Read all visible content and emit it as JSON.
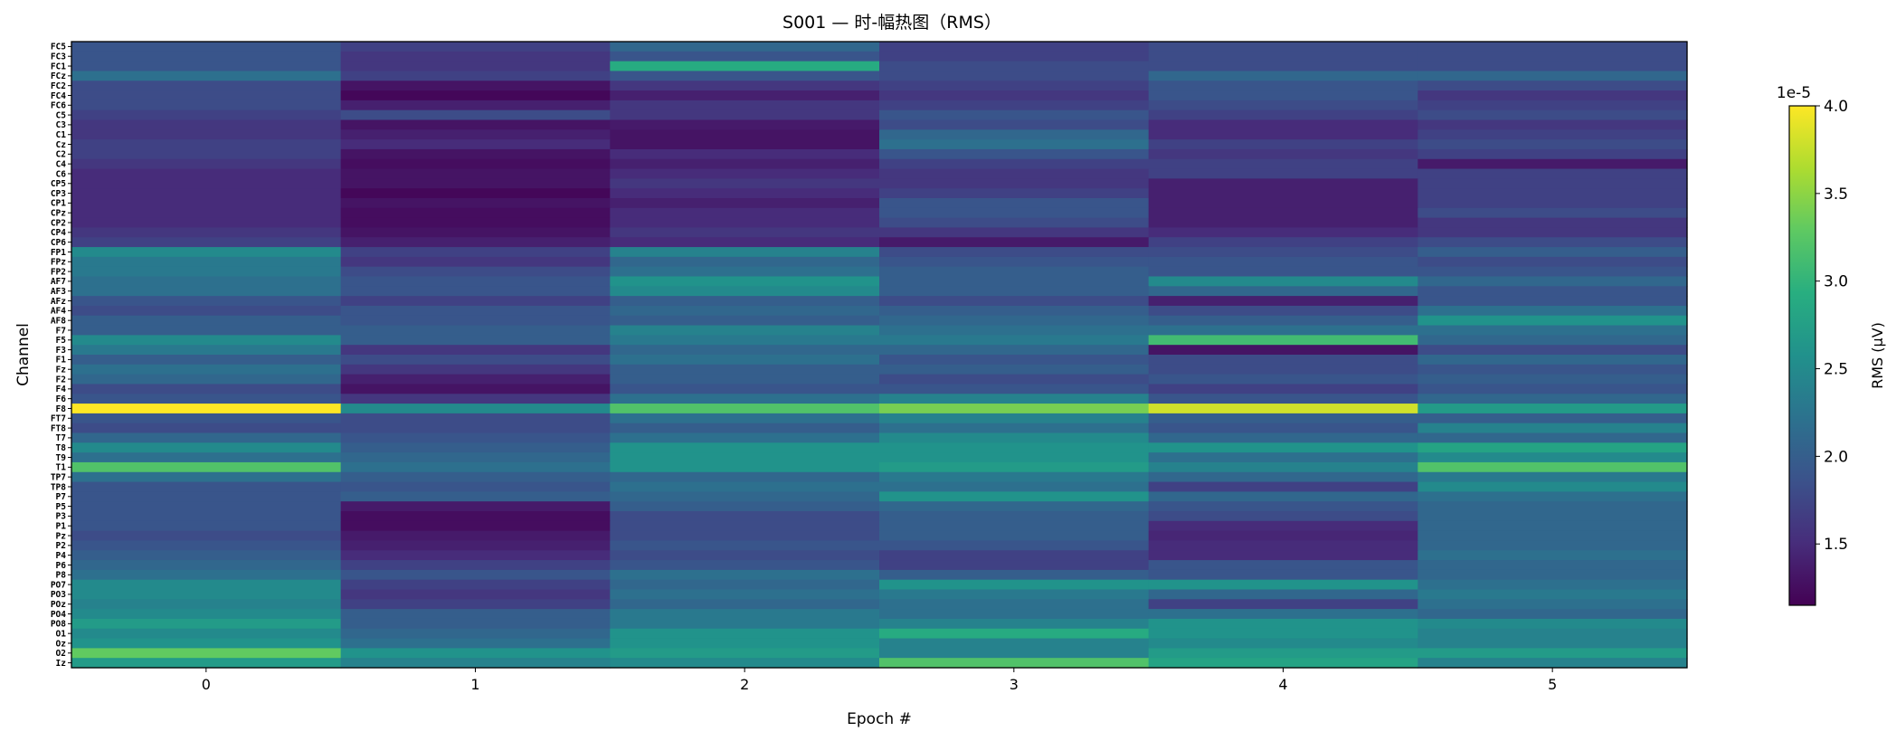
{
  "chart_data": {
    "type": "heatmap",
    "title": "S001 — 时-幅热图（RMS）",
    "xlabel": "Epoch #",
    "ylabel": "Channel",
    "x": [
      "0",
      "1",
      "2",
      "3",
      "4",
      "5"
    ],
    "channels": [
      "FC5",
      "FC3",
      "FC1",
      "FCz",
      "FC2",
      "FC4",
      "FC6",
      "C5",
      "C3",
      "C1",
      "Cz",
      "C2",
      "C4",
      "C6",
      "CP5",
      "CP3",
      "CP1",
      "CPz",
      "CP2",
      "CP4",
      "CP6",
      "FP1",
      "FPz",
      "FP2",
      "AF7",
      "AF3",
      "AFz",
      "AF4",
      "AF8",
      "F7",
      "F5",
      "F3",
      "F1",
      "Fz",
      "F2",
      "F4",
      "F6",
      "F8",
      "FT7",
      "FT8",
      "T7",
      "T8",
      "T9",
      "T1",
      "TP7",
      "TP8",
      "P7",
      "P5",
      "P3",
      "P1",
      "Pz",
      "P2",
      "P4",
      "P6",
      "P8",
      "PO7",
      "PO3",
      "POz",
      "PO4",
      "PO8",
      "O1",
      "Oz",
      "O2",
      "Iz"
    ],
    "colormap": "viridis",
    "colorbar": {
      "label": "RMS (μV)",
      "scale_text": "1e-5",
      "min": 1.15,
      "max": 4.0,
      "ticks": [
        "1.5",
        "2.0",
        "2.5",
        "3.0",
        "3.5",
        "4.0"
      ],
      "tick_values": [
        1.5,
        2.0,
        2.5,
        3.0,
        3.5,
        4.0
      ]
    },
    "values": [
      [
        1.9,
        1.7,
        2.1,
        1.7,
        1.8,
        1.8
      ],
      [
        1.9,
        1.6,
        1.9,
        1.7,
        1.8,
        1.8
      ],
      [
        1.9,
        1.6,
        2.9,
        1.8,
        1.8,
        1.8
      ],
      [
        2.2,
        1.7,
        1.9,
        1.8,
        2.1,
        2.1
      ],
      [
        1.8,
        1.3,
        1.6,
        1.7,
        1.9,
        1.8
      ],
      [
        1.8,
        1.2,
        1.4,
        1.6,
        1.9,
        1.6
      ],
      [
        1.8,
        1.4,
        1.6,
        1.7,
        1.8,
        1.7
      ],
      [
        1.7,
        1.8,
        1.6,
        1.9,
        1.7,
        1.8
      ],
      [
        1.6,
        1.3,
        1.35,
        1.8,
        1.5,
        1.6
      ],
      [
        1.6,
        1.4,
        1.3,
        2.1,
        1.5,
        1.7
      ],
      [
        1.7,
        1.5,
        1.3,
        2.2,
        1.7,
        1.8
      ],
      [
        1.7,
        1.3,
        1.5,
        1.9,
        1.6,
        1.7
      ],
      [
        1.6,
        1.25,
        1.4,
        1.7,
        1.7,
        1.35
      ],
      [
        1.5,
        1.3,
        1.5,
        1.6,
        1.7,
        1.7
      ],
      [
        1.5,
        1.3,
        1.6,
        1.6,
        1.4,
        1.7
      ],
      [
        1.5,
        1.2,
        1.5,
        1.7,
        1.4,
        1.7
      ],
      [
        1.5,
        1.3,
        1.4,
        1.9,
        1.4,
        1.7
      ],
      [
        1.5,
        1.25,
        1.5,
        1.9,
        1.4,
        1.8
      ],
      [
        1.5,
        1.25,
        1.5,
        1.8,
        1.4,
        1.6
      ],
      [
        1.6,
        1.3,
        1.6,
        1.6,
        1.5,
        1.6
      ],
      [
        1.7,
        1.4,
        1.5,
        1.35,
        1.7,
        1.8
      ],
      [
        2.5,
        1.7,
        2.4,
        1.8,
        1.8,
        2.0
      ],
      [
        2.3,
        1.6,
        2.1,
        1.9,
        1.9,
        1.8
      ],
      [
        2.3,
        1.8,
        2.2,
        2.0,
        1.9,
        1.9
      ],
      [
        2.2,
        1.9,
        2.6,
        2.0,
        2.5,
        2.1
      ],
      [
        2.2,
        1.9,
        2.5,
        2.0,
        2.1,
        1.9
      ],
      [
        1.9,
        1.7,
        2.0,
        1.8,
        1.4,
        1.9
      ],
      [
        1.8,
        1.9,
        2.1,
        2.0,
        1.8,
        2.2
      ],
      [
        2.0,
        1.9,
        2.0,
        2.1,
        2.0,
        2.6
      ],
      [
        2.0,
        2.0,
        2.4,
        2.2,
        2.2,
        2.2
      ],
      [
        2.5,
        2.0,
        2.3,
        2.3,
        3.1,
        2.1
      ],
      [
        2.3,
        1.6,
        2.1,
        2.1,
        1.3,
        1.8
      ],
      [
        2.0,
        1.8,
        2.2,
        1.9,
        1.8,
        2.1
      ],
      [
        2.2,
        1.6,
        2.0,
        2.0,
        1.8,
        1.9
      ],
      [
        2.1,
        1.4,
        2.0,
        1.8,
        1.9,
        2.0
      ],
      [
        1.8,
        1.3,
        1.9,
        1.9,
        1.7,
        1.9
      ],
      [
        1.9,
        1.6,
        2.2,
        2.4,
        1.9,
        2.1
      ],
      [
        4.0,
        2.5,
        3.2,
        3.4,
        3.8,
        2.7
      ],
      [
        1.9,
        1.8,
        2.2,
        2.4,
        2.0,
        2.0
      ],
      [
        1.8,
        1.8,
        2.0,
        2.2,
        1.9,
        2.4
      ],
      [
        2.1,
        1.9,
        2.2,
        2.5,
        2.1,
        2.1
      ],
      [
        2.5,
        2.0,
        2.6,
        2.6,
        2.6,
        2.8
      ],
      [
        2.2,
        2.1,
        2.6,
        2.6,
        2.2,
        2.5
      ],
      [
        3.2,
        2.2,
        2.6,
        2.7,
        2.4,
        3.2
      ],
      [
        2.2,
        2.0,
        2.1,
        2.3,
        2.1,
        2.3
      ],
      [
        1.9,
        1.9,
        2.2,
        2.2,
        1.7,
        2.5
      ],
      [
        1.9,
        2.0,
        2.1,
        2.6,
        2.1,
        2.2
      ],
      [
        1.9,
        1.35,
        2.0,
        2.1,
        1.9,
        2.1
      ],
      [
        1.9,
        1.25,
        1.8,
        2.0,
        1.8,
        2.1
      ],
      [
        1.9,
        1.25,
        1.8,
        2.0,
        1.5,
        2.1
      ],
      [
        1.8,
        1.35,
        1.8,
        2.0,
        1.45,
        2.1
      ],
      [
        1.9,
        1.4,
        1.9,
        1.9,
        1.5,
        2.1
      ],
      [
        2.0,
        1.5,
        1.8,
        1.7,
        1.5,
        2.2
      ],
      [
        2.1,
        1.7,
        1.9,
        1.7,
        1.9,
        2.1
      ],
      [
        2.2,
        1.9,
        2.2,
        2.0,
        1.9,
        2.1
      ],
      [
        2.5,
        1.7,
        2.1,
        2.6,
        2.6,
        2.2
      ],
      [
        2.5,
        1.6,
        2.2,
        2.3,
        2.1,
        2.3
      ],
      [
        2.4,
        1.7,
        2.1,
        2.2,
        1.7,
        2.2
      ],
      [
        2.5,
        2.0,
        2.3,
        2.2,
        2.2,
        2.1
      ],
      [
        2.7,
        2.0,
        2.3,
        2.4,
        2.6,
        2.5
      ],
      [
        2.5,
        2.1,
        2.6,
        2.9,
        2.6,
        2.4
      ],
      [
        2.6,
        2.2,
        2.6,
        2.4,
        2.5,
        2.4
      ],
      [
        3.3,
        2.6,
        2.7,
        2.4,
        2.7,
        2.7
      ],
      [
        2.7,
        2.4,
        2.5,
        3.2,
        2.8,
        2.4
      ]
    ]
  }
}
